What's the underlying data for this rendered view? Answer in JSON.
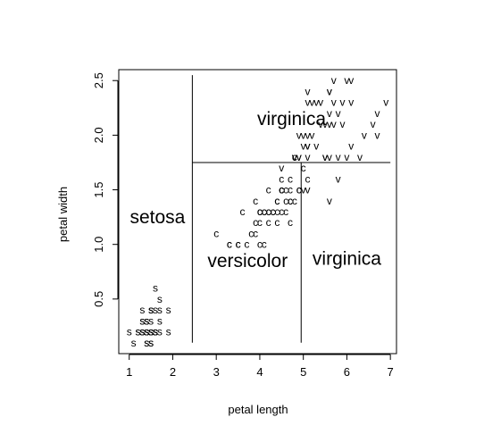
{
  "chart_data": {
    "type": "scatter",
    "title": "",
    "xlabel": "petal length",
    "ylabel": "petal width",
    "xlim": [
      0.76,
      7.14
    ],
    "ylim": [
      0.0,
      2.6
    ],
    "xticks": [
      1,
      2,
      3,
      4,
      5,
      6,
      7
    ],
    "yticks": [
      0.5,
      1.0,
      1.5,
      2.0,
      2.5
    ],
    "xtick_labels": [
      "1",
      "2",
      "3",
      "4",
      "5",
      "6",
      "7"
    ],
    "ytick_labels": [
      "0.5",
      "1.0",
      "1.5",
      "2.0",
      "2.5"
    ],
    "grid": false,
    "splits": [
      {
        "axis": "x",
        "value": 2.45,
        "from": 0.1,
        "to": 2.55
      },
      {
        "axis": "y",
        "value": 1.75,
        "from": 2.45,
        "to": 7.0
      },
      {
        "axis": "x",
        "value": 4.95,
        "from": 0.1,
        "to": 1.75
      }
    ],
    "region_labels": [
      {
        "text": "setosa",
        "x": 1.65,
        "y": 1.25
      },
      {
        "text": "versicolor",
        "x": 3.72,
        "y": 0.85
      },
      {
        "text": "virginica",
        "x": 6.0,
        "y": 0.87
      },
      {
        "text": "virginica",
        "x": 4.73,
        "y": 2.15
      }
    ],
    "series": [
      {
        "symbol": "s",
        "points": [
          [
            1.4,
            0.2
          ],
          [
            1.4,
            0.2
          ],
          [
            1.3,
            0.2
          ],
          [
            1.5,
            0.2
          ],
          [
            1.4,
            0.2
          ],
          [
            1.7,
            0.4
          ],
          [
            1.4,
            0.3
          ],
          [
            1.5,
            0.2
          ],
          [
            1.4,
            0.2
          ],
          [
            1.5,
            0.1
          ],
          [
            1.5,
            0.2
          ],
          [
            1.6,
            0.2
          ],
          [
            1.4,
            0.1
          ],
          [
            1.1,
            0.1
          ],
          [
            1.2,
            0.2
          ],
          [
            1.5,
            0.4
          ],
          [
            1.3,
            0.4
          ],
          [
            1.4,
            0.3
          ],
          [
            1.7,
            0.3
          ],
          [
            1.5,
            0.3
          ],
          [
            1.7,
            0.2
          ],
          [
            1.5,
            0.4
          ],
          [
            1.0,
            0.2
          ],
          [
            1.7,
            0.5
          ],
          [
            1.9,
            0.2
          ],
          [
            1.6,
            0.2
          ],
          [
            1.6,
            0.4
          ],
          [
            1.5,
            0.2
          ],
          [
            1.4,
            0.2
          ],
          [
            1.6,
            0.2
          ],
          [
            1.6,
            0.2
          ],
          [
            1.5,
            0.4
          ],
          [
            1.5,
            0.1
          ],
          [
            1.4,
            0.2
          ],
          [
            1.5,
            0.2
          ],
          [
            1.2,
            0.2
          ],
          [
            1.3,
            0.2
          ],
          [
            1.4,
            0.1
          ],
          [
            1.3,
            0.2
          ],
          [
            1.5,
            0.2
          ],
          [
            1.3,
            0.3
          ],
          [
            1.3,
            0.3
          ],
          [
            1.3,
            0.2
          ],
          [
            1.6,
            0.6
          ],
          [
            1.9,
            0.4
          ],
          [
            1.4,
            0.3
          ],
          [
            1.6,
            0.2
          ],
          [
            1.4,
            0.2
          ],
          [
            1.5,
            0.2
          ],
          [
            1.4,
            0.2
          ]
        ]
      },
      {
        "symbol": "c",
        "points": [
          [
            4.7,
            1.4
          ],
          [
            4.5,
            1.5
          ],
          [
            4.9,
            1.5
          ],
          [
            4.0,
            1.3
          ],
          [
            4.6,
            1.5
          ],
          [
            4.5,
            1.3
          ],
          [
            4.7,
            1.6
          ],
          [
            3.3,
            1.0
          ],
          [
            4.6,
            1.3
          ],
          [
            3.9,
            1.4
          ],
          [
            3.5,
            1.0
          ],
          [
            4.2,
            1.5
          ],
          [
            4.0,
            1.0
          ],
          [
            4.7,
            1.4
          ],
          [
            3.6,
            1.3
          ],
          [
            4.4,
            1.4
          ],
          [
            4.5,
            1.5
          ],
          [
            4.1,
            1.0
          ],
          [
            4.5,
            1.5
          ],
          [
            3.9,
            1.1
          ],
          [
            4.8,
            1.8
          ],
          [
            4.0,
            1.3
          ],
          [
            4.9,
            1.5
          ],
          [
            4.7,
            1.2
          ],
          [
            4.3,
            1.3
          ],
          [
            4.4,
            1.4
          ],
          [
            4.8,
            1.4
          ],
          [
            5.0,
            1.7
          ],
          [
            4.5,
            1.5
          ],
          [
            3.5,
            1.0
          ],
          [
            3.8,
            1.1
          ],
          [
            3.7,
            1.0
          ],
          [
            3.9,
            1.2
          ],
          [
            5.1,
            1.6
          ],
          [
            4.5,
            1.5
          ],
          [
            4.5,
            1.6
          ],
          [
            4.7,
            1.5
          ],
          [
            4.4,
            1.3
          ],
          [
            4.1,
            1.3
          ],
          [
            4.0,
            1.3
          ],
          [
            4.4,
            1.2
          ],
          [
            4.6,
            1.4
          ],
          [
            4.0,
            1.2
          ],
          [
            3.3,
            1.0
          ],
          [
            4.2,
            1.3
          ],
          [
            4.2,
            1.2
          ],
          [
            4.2,
            1.3
          ],
          [
            4.3,
            1.3
          ],
          [
            3.0,
            1.1
          ],
          [
            4.1,
            1.3
          ]
        ]
      },
      {
        "symbol": "v",
        "points": [
          [
            6.0,
            2.5
          ],
          [
            5.1,
            1.9
          ],
          [
            5.9,
            2.1
          ],
          [
            5.6,
            1.8
          ],
          [
            5.8,
            2.2
          ],
          [
            6.6,
            2.1
          ],
          [
            4.5,
            1.7
          ],
          [
            6.3,
            1.8
          ],
          [
            5.8,
            1.8
          ],
          [
            6.1,
            2.5
          ],
          [
            5.1,
            2.0
          ],
          [
            5.3,
            1.9
          ],
          [
            5.5,
            2.1
          ],
          [
            5.0,
            2.0
          ],
          [
            5.1,
            2.4
          ],
          [
            5.3,
            2.3
          ],
          [
            5.5,
            1.8
          ],
          [
            6.7,
            2.2
          ],
          [
            6.9,
            2.3
          ],
          [
            5.0,
            1.5
          ],
          [
            5.7,
            2.3
          ],
          [
            4.9,
            2.0
          ],
          [
            6.7,
            2.0
          ],
          [
            4.9,
            1.8
          ],
          [
            5.7,
            2.1
          ],
          [
            6.0,
            1.8
          ],
          [
            4.8,
            1.8
          ],
          [
            4.9,
            1.8
          ],
          [
            5.6,
            2.1
          ],
          [
            5.8,
            1.6
          ],
          [
            6.1,
            1.9
          ],
          [
            6.4,
            2.0
          ],
          [
            5.6,
            2.2
          ],
          [
            5.1,
            1.5
          ],
          [
            5.6,
            1.4
          ],
          [
            6.1,
            2.3
          ],
          [
            5.6,
            2.4
          ],
          [
            5.5,
            1.8
          ],
          [
            4.8,
            1.8
          ],
          [
            5.4,
            2.1
          ],
          [
            5.6,
            2.4
          ],
          [
            5.1,
            2.3
          ],
          [
            5.1,
            1.9
          ],
          [
            5.9,
            2.3
          ],
          [
            5.7,
            2.5
          ],
          [
            5.2,
            2.3
          ],
          [
            5.0,
            1.9
          ],
          [
            5.2,
            2.0
          ],
          [
            5.4,
            2.3
          ],
          [
            5.1,
            1.8
          ]
        ]
      }
    ]
  }
}
